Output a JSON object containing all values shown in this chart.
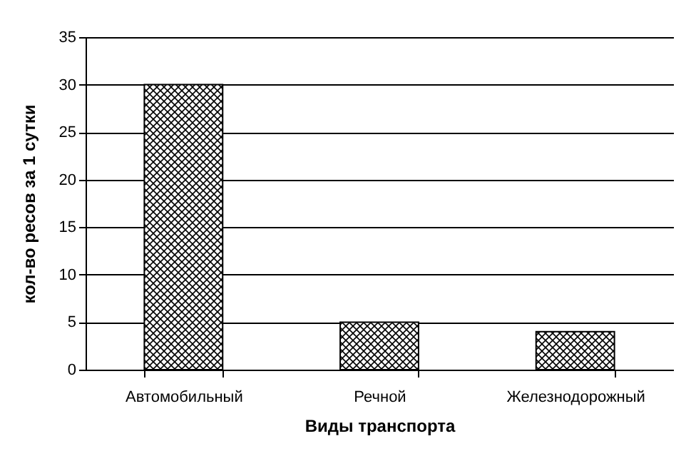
{
  "chart_data": {
    "type": "bar",
    "xlabel": "Виды транспорта",
    "ylabel": "кол-во ресов за 1 сутки",
    "categories": [
      "Автомобильный",
      "Речной",
      "Железнодорожный"
    ],
    "values": [
      30,
      5,
      4
    ],
    "color": "#000000",
    "ylim": [
      0,
      35
    ],
    "yticks": [
      0,
      5,
      10,
      15,
      20,
      25,
      30,
      35
    ],
    "grid": "y"
  }
}
